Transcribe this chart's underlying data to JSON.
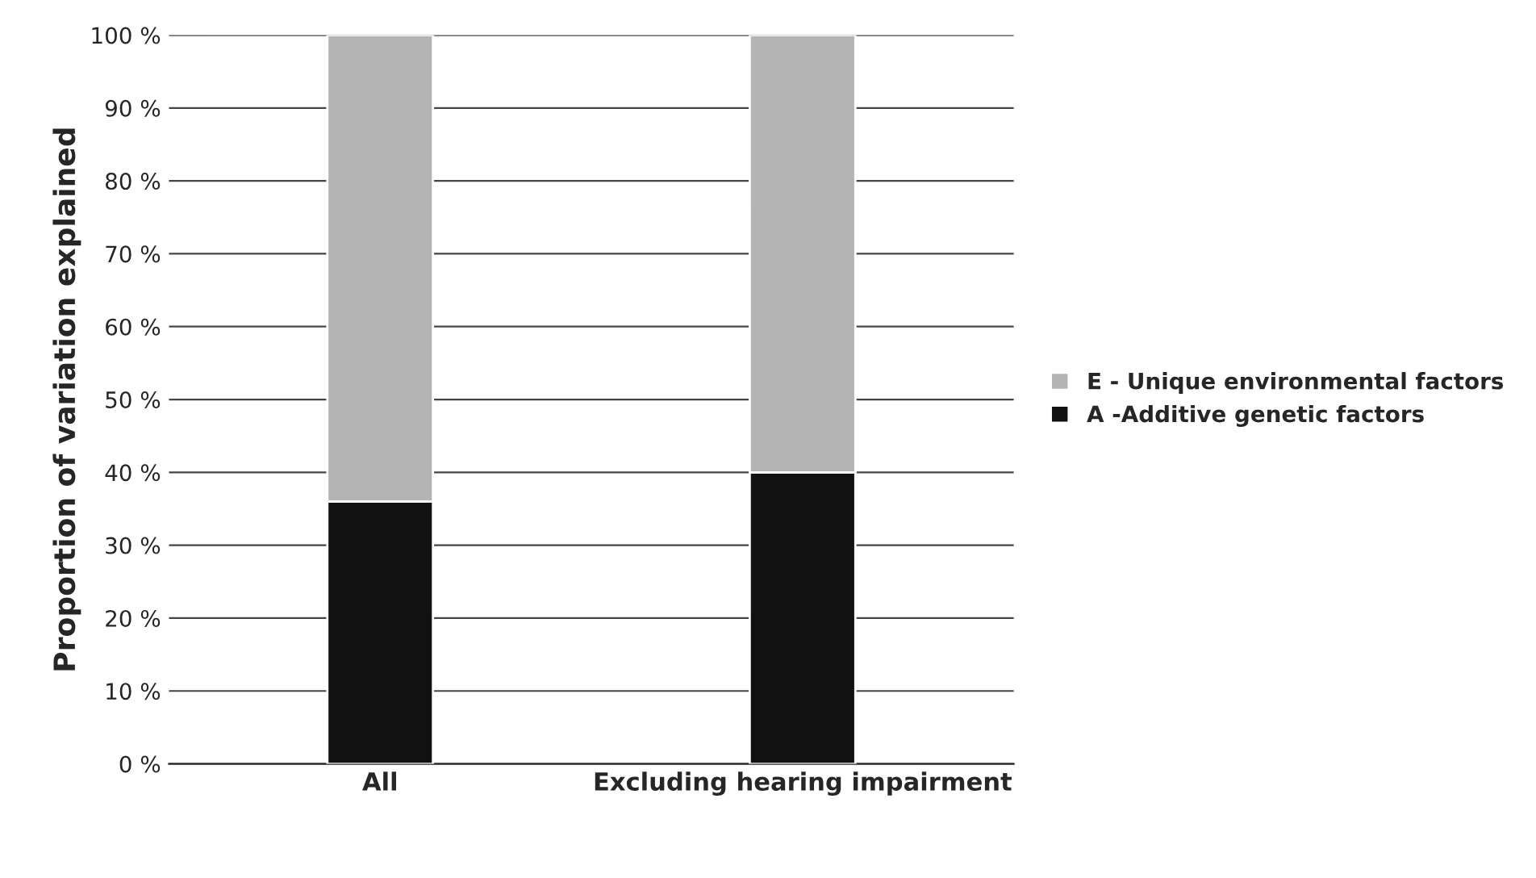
{
  "chart_data": {
    "type": "bar",
    "stacked": true,
    "ylabel": "Proportion of variation explained",
    "categories": [
      "All",
      "Excluding hearing impairment"
    ],
    "series": [
      {
        "name": "A -Additive genetic factors",
        "color": "#111111",
        "values": [
          36,
          40
        ]
      },
      {
        "name": "E - Unique environmental factors",
        "color": "#b4b4b4",
        "values": [
          64,
          60
        ]
      }
    ],
    "ylim": [
      0,
      100
    ],
    "yticks": [
      {
        "value": 0,
        "label": "0 %"
      },
      {
        "value": 10,
        "label": "10 %"
      },
      {
        "value": 20,
        "label": "20 %"
      },
      {
        "value": 30,
        "label": "30 %"
      },
      {
        "value": 40,
        "label": "40 %"
      },
      {
        "value": 50,
        "label": "50 %"
      },
      {
        "value": 60,
        "label": "60 %"
      },
      {
        "value": 70,
        "label": "70 %"
      },
      {
        "value": 80,
        "label": "80 %"
      },
      {
        "value": 90,
        "label": "90 %"
      },
      {
        "value": 100,
        "label": "100 %"
      }
    ],
    "grid": "y",
    "legend": "right"
  }
}
